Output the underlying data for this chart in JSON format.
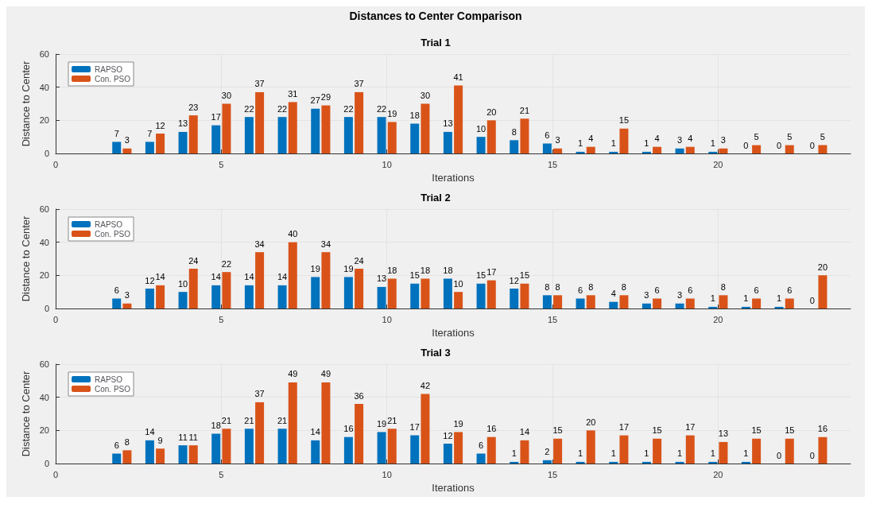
{
  "chart_data": [
    {
      "type": "other",
      "title": "Distances to Center Comparison"
    },
    {
      "type": "bar",
      "title": "Trial 1",
      "xlabel": "Iterations",
      "ylabel": "Distance to Center",
      "x": [
        2,
        3,
        4,
        5,
        6,
        7,
        8,
        9,
        10,
        11,
        12,
        13,
        14,
        15,
        16,
        17,
        18,
        19,
        20,
        21,
        22,
        23
      ],
      "xlim": [
        0,
        24
      ],
      "xticks": [
        0,
        5,
        10,
        15,
        20
      ],
      "ylim": [
        0,
        60
      ],
      "yticks": [
        0,
        20,
        40,
        60
      ],
      "grid": true,
      "legend": "top left",
      "data_labels": true,
      "series": [
        {
          "name": "RAPSO",
          "color": "#0072bd",
          "values": [
            7,
            7,
            13,
            17,
            22,
            22,
            27,
            22,
            22,
            18,
            13,
            10,
            8,
            6,
            1,
            1,
            1,
            3,
            1,
            0,
            0,
            0
          ]
        },
        {
          "name": "Con. PSO",
          "color": "#d95319",
          "values": [
            3,
            12,
            23,
            30,
            37,
            31,
            29,
            37,
            19,
            30,
            41,
            20,
            21,
            3,
            4,
            15,
            4,
            4,
            3,
            5,
            5,
            5
          ]
        }
      ]
    },
    {
      "type": "bar",
      "title": "Trial 2",
      "xlabel": "Iterations",
      "ylabel": "Distance to Center",
      "x": [
        2,
        3,
        4,
        5,
        6,
        7,
        8,
        9,
        10,
        11,
        12,
        13,
        14,
        15,
        16,
        17,
        18,
        19,
        20,
        21,
        22,
        23
      ],
      "xlim": [
        0,
        24
      ],
      "xticks": [
        0,
        5,
        10,
        15,
        20
      ],
      "ylim": [
        0,
        60
      ],
      "yticks": [
        0,
        20,
        40,
        60
      ],
      "grid": true,
      "legend": "top left",
      "data_labels": true,
      "series": [
        {
          "name": "RAPSO",
          "color": "#0072bd",
          "values": [
            6,
            12,
            10,
            14,
            14,
            14,
            19,
            19,
            13,
            15,
            18,
            15,
            12,
            8,
            6,
            4,
            3,
            3,
            1,
            1,
            1,
            0
          ]
        },
        {
          "name": "Con. PSO",
          "color": "#d95319",
          "values": [
            3,
            14,
            24,
            22,
            34,
            40,
            34,
            24,
            18,
            18,
            10,
            17,
            15,
            8,
            8,
            8,
            6,
            6,
            8,
            6,
            6,
            20
          ]
        }
      ]
    },
    {
      "type": "bar",
      "title": "Trial 3",
      "xlabel": "Iterations",
      "ylabel": "Distance to Center",
      "x": [
        2,
        3,
        4,
        5,
        6,
        7,
        8,
        9,
        10,
        11,
        12,
        13,
        14,
        15,
        16,
        17,
        18,
        19,
        20,
        21,
        22,
        23
      ],
      "xlim": [
        0,
        24
      ],
      "xticks": [
        0,
        5,
        10,
        15,
        20
      ],
      "ylim": [
        0,
        60
      ],
      "yticks": [
        0,
        20,
        40,
        60
      ],
      "grid": true,
      "legend": "top left",
      "data_labels": true,
      "series": [
        {
          "name": "RAPSO",
          "color": "#0072bd",
          "values": [
            6,
            14,
            11,
            18,
            21,
            21,
            14,
            16,
            19,
            17,
            12,
            6,
            1,
            2,
            1,
            1,
            1,
            1,
            1,
            1,
            0,
            0
          ]
        },
        {
          "name": "Con. PSO",
          "color": "#d95319",
          "values": [
            8,
            9,
            11,
            21,
            37,
            49,
            49,
            36,
            21,
            42,
            19,
            16,
            14,
            15,
            20,
            17,
            15,
            17,
            13,
            15,
            15,
            16
          ]
        }
      ]
    }
  ]
}
